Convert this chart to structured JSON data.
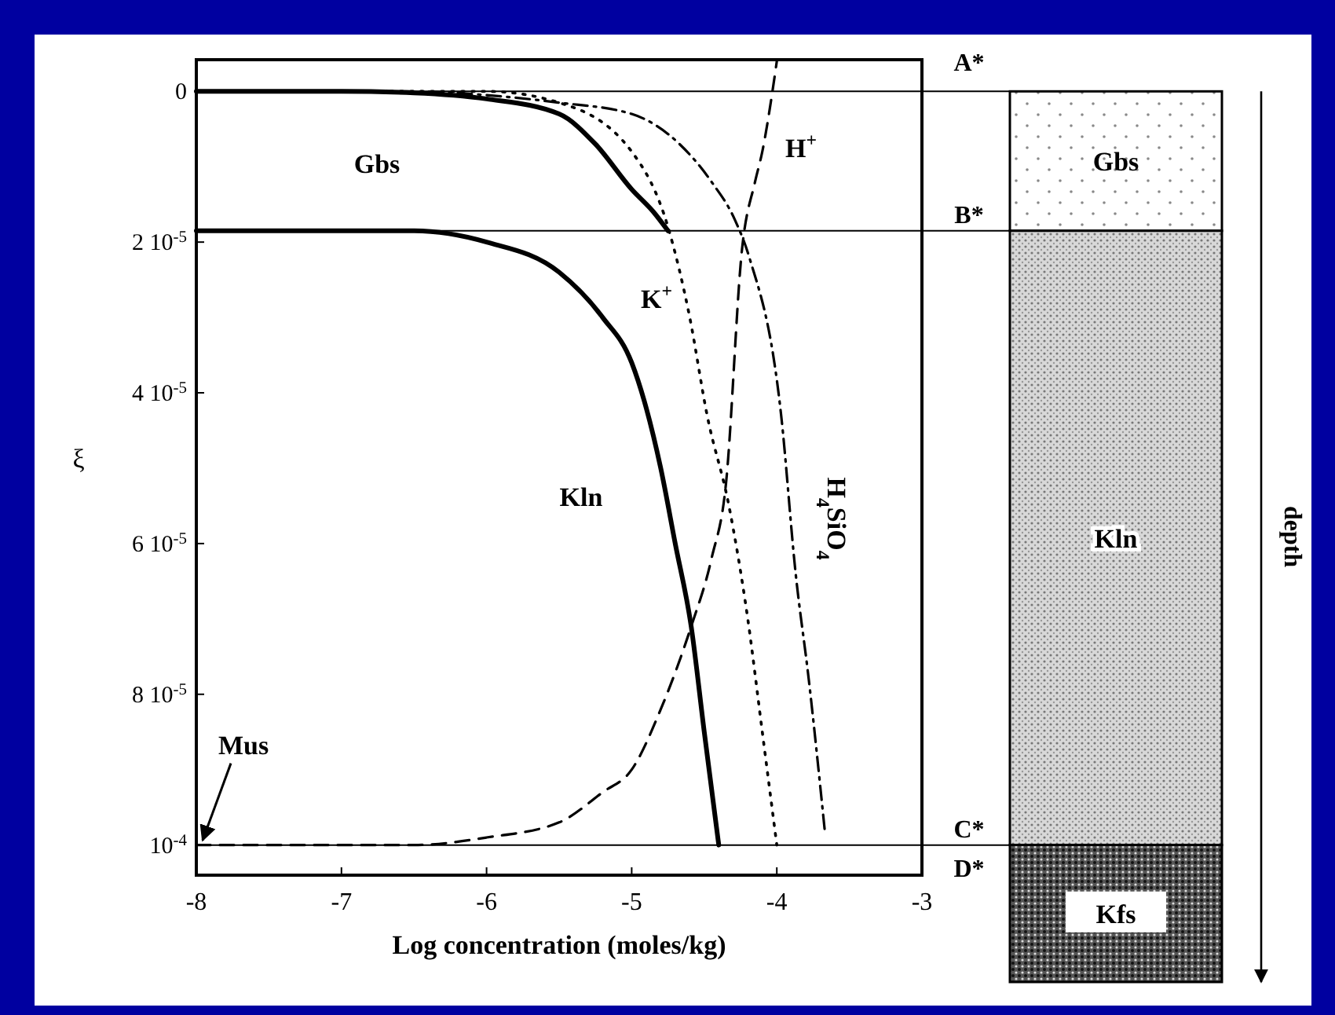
{
  "chart_data": {
    "type": "line",
    "xlabel": "Log concentration (moles/kg)",
    "ylabel": "ξ",
    "xlim": [
      -8,
      -3
    ],
    "xticks": [
      -8,
      -7,
      -6,
      -5,
      -4,
      -3
    ],
    "ylim": [
      0.000104,
      -4.2e-06
    ],
    "yticks": [
      {
        "value": 0,
        "label": "0"
      },
      {
        "value": 2e-05,
        "label": "2 10$^{-5}$"
      },
      {
        "value": 4e-05,
        "label": "4 10$^{-5}$"
      },
      {
        "value": 6e-05,
        "label": "6 10$^{-5}$"
      },
      {
        "value": 8e-05,
        "label": "8 10$^{-5}$"
      },
      {
        "value": 0.0001,
        "label": "10$^{-4}$"
      }
    ],
    "series": [
      {
        "name": "Gbs",
        "color": "#000000",
        "line_style": "solid",
        "x": [
          -8,
          -7,
          -6.5,
          -6,
          -5.5,
          -5.25,
          -5,
          -4.85,
          -4.75
        ],
        "values": [
          0,
          0,
          2e-07,
          1e-06,
          3e-06,
          7e-06,
          1.3e-05,
          1.6e-05,
          1.85e-05
        ]
      },
      {
        "name": "Kln",
        "color": "#000000",
        "line_style": "solid",
        "x": [
          -8,
          -6.5,
          -6,
          -5.5,
          -5.2,
          -5,
          -4.9,
          -4.8,
          -4.7,
          -4.59,
          -4.5,
          -4.4
        ],
        "values": [
          1.85e-05,
          1.85e-05,
          2e-05,
          2.4e-05,
          3e-05,
          3.6e-05,
          4.2e-05,
          5e-05,
          6e-05,
          7.1e-05,
          8.5e-05,
          0.0001
        ]
      },
      {
        "name": "H$^{+}$",
        "color": "#000000",
        "line_style": "dashed",
        "x": [
          -8,
          -6.5,
          -6,
          -5.5,
          -5.2,
          -5,
          -4.8,
          -4.59,
          -4.45,
          -4.35,
          -4.24,
          -4.15,
          -4.1,
          -4.03,
          -4
        ],
        "values": [
          0.0001,
          0.0001,
          9.9e-05,
          9.7e-05,
          9.3e-05,
          9e-05,
          8.2e-05,
          7.1e-05,
          6.2e-05,
          5.2e-05,
          2.1e-05,
          1.2e-05,
          8e-06,
          0,
          -4e-06
        ]
      },
      {
        "name": "K$^{+}$",
        "color": "#000000",
        "line_style": "dotted",
        "x": [
          -8,
          -6,
          -5.5,
          -5,
          -4.75,
          -4.6,
          -4.48,
          -4.33,
          -4.2,
          -4.1,
          -4
        ],
        "values": [
          0,
          0,
          1.5e-06,
          8e-06,
          1.8e-05,
          3e-05,
          4.3e-05,
          5.5e-05,
          7e-05,
          8.5e-05,
          0.0001
        ]
      },
      {
        "name": "H$_{4}$SiO$_{4}$",
        "color": "#000000",
        "line_style": "dashdot",
        "x": [
          -8,
          -6.5,
          -6,
          -5.5,
          -5,
          -4.67,
          -4.45,
          -4.29,
          -4.19,
          -3.97,
          -3.87,
          -3.78,
          -3.67
        ],
        "values": [
          0,
          0,
          5e-07,
          1.5e-06,
          3e-06,
          7e-06,
          1.2e-05,
          1.7e-05,
          2.2e-05,
          4.3e-05,
          6.4e-05,
          7.8e-05,
          9.8e-05
        ]
      }
    ],
    "ref_lines": [
      {
        "axis": "y",
        "value": 0,
        "label": "A*",
        "color": "#000000"
      },
      {
        "axis": "y",
        "value": 1.85e-05,
        "label": "B*",
        "color": "#000000"
      },
      {
        "axis": "y",
        "value": 0.0001,
        "label": "C*",
        "color": "#000000"
      }
    ],
    "annotations": [
      {
        "text": "Mus",
        "x": -8,
        "y": 0.0001
      },
      "Gbs",
      "Kln",
      "Kfs",
      "depth",
      "D*"
    ]
  }
}
